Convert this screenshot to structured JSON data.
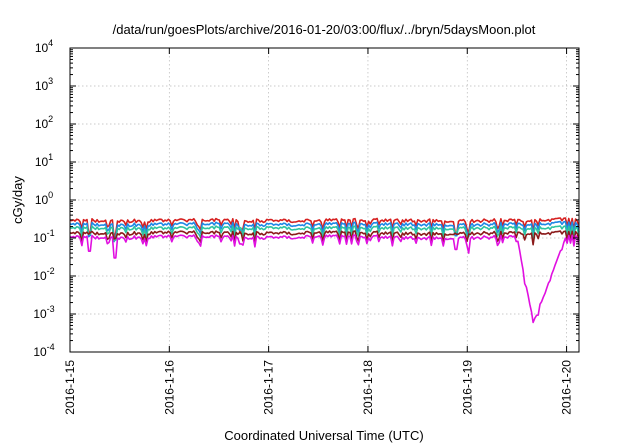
{
  "chart_data": {
    "type": "line",
    "title": "/data/run/goesPlots/archive/2016-01-20/03:00/flux/../bryn/5daysMoon.plot",
    "xlabel": "Coordinated Universal Time (UTC)",
    "ylabel": "cGy/day",
    "yscale": "log",
    "ylim": [
      0.0001,
      10000
    ],
    "y_ticks": [
      {
        "value": 0.0001,
        "mantissa": "10",
        "exp": "-4"
      },
      {
        "value": 0.001,
        "mantissa": "10",
        "exp": "-3"
      },
      {
        "value": 0.01,
        "mantissa": "10",
        "exp": "-2"
      },
      {
        "value": 0.1,
        "mantissa": "10",
        "exp": "-1"
      },
      {
        "value": 1,
        "mantissa": "10",
        "exp": "0"
      },
      {
        "value": 10,
        "mantissa": "10",
        "exp": "1"
      },
      {
        "value": 100,
        "mantissa": "10",
        "exp": "2"
      },
      {
        "value": 1000,
        "mantissa": "10",
        "exp": "3"
      },
      {
        "value": 10000,
        "mantissa": "10",
        "exp": "4"
      }
    ],
    "xlim": [
      "2016-01-15 00:00",
      "2016-01-20 03:00"
    ],
    "x_ticks": [
      "2016-1-15",
      "2016-1-16",
      "2016-1-17",
      "2016-1-18",
      "2016-1-19",
      "2016-1-20"
    ],
    "grid": true,
    "legend": "none",
    "x_times": [
      "2016-01-15 00:00",
      "2016-01-15 12:00",
      "2016-01-16 00:00",
      "2016-01-16 12:00",
      "2016-01-17 00:00",
      "2016-01-17 12:00",
      "2016-01-18 00:00",
      "2016-01-18 12:00",
      "2016-01-19 00:00",
      "2016-01-19 12:00",
      "2016-01-19 16:00",
      "2016-01-20 00:00",
      "2016-01-20 03:00"
    ],
    "series": [
      {
        "color": "#d62020",
        "values": [
          0.3,
          0.28,
          0.29,
          0.3,
          0.28,
          0.29,
          0.3,
          0.29,
          0.28,
          0.3,
          0.29,
          0.31,
          0.3
        ]
      },
      {
        "color": "#1e88e5",
        "values": [
          0.24,
          0.22,
          0.23,
          0.24,
          0.22,
          0.23,
          0.24,
          0.23,
          0.22,
          0.24,
          0.23,
          0.25,
          0.24
        ]
      },
      {
        "color": "#2ec4a0",
        "values": [
          0.19,
          0.18,
          0.18,
          0.19,
          0.18,
          0.18,
          0.19,
          0.18,
          0.18,
          0.19,
          0.18,
          0.19,
          0.19
        ]
      },
      {
        "color": "#8b1a1a",
        "values": [
          0.14,
          0.13,
          0.14,
          0.14,
          0.13,
          0.14,
          0.14,
          0.13,
          0.13,
          0.14,
          0.13,
          0.14,
          0.14
        ]
      },
      {
        "color": "#e010e0",
        "values": [
          0.11,
          0.1,
          0.11,
          0.11,
          0.1,
          0.11,
          0.11,
          0.1,
          0.1,
          0.11,
          0.0006,
          0.11,
          0.11
        ]
      }
    ],
    "events": [
      {
        "time": "2016-01-15 04:48",
        "level": 0.045
      },
      {
        "time": "2016-01-15 10:48",
        "level": 0.03
      },
      {
        "time": "2016-01-16 17:12",
        "level": 0.07
      },
      {
        "time": "2016-01-18 21:12",
        "level": 0.05
      },
      {
        "time": "2016-01-19 00:24",
        "level": 0.04
      },
      {
        "time": "2016-01-19 16:00",
        "level": 0.0006
      }
    ]
  }
}
